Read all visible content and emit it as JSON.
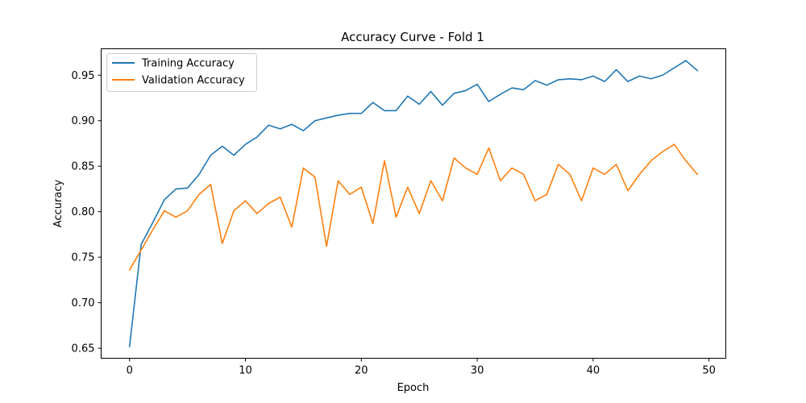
{
  "chart_data": {
    "type": "line",
    "title": "Accuracy Curve - Fold 1",
    "xlabel": "Epoch",
    "ylabel": "Accuracy",
    "xlim": [
      -2.45,
      51.45
    ],
    "ylim": [
      0.639,
      0.979
    ],
    "xticks": [
      0,
      10,
      20,
      30,
      40,
      50
    ],
    "yticks": [
      0.65,
      0.7,
      0.75,
      0.8,
      0.85,
      0.9,
      0.95
    ],
    "ytick_labels": [
      "0.65",
      "0.70",
      "0.75",
      "0.80",
      "0.85",
      "0.90",
      "0.95"
    ],
    "grid": false,
    "legend_position": "upper-left",
    "x": [
      0,
      1,
      2,
      3,
      4,
      5,
      6,
      7,
      8,
      9,
      10,
      11,
      12,
      13,
      14,
      15,
      16,
      17,
      18,
      19,
      20,
      21,
      22,
      23,
      24,
      25,
      26,
      27,
      28,
      29,
      30,
      31,
      32,
      33,
      34,
      35,
      36,
      37,
      38,
      39,
      40,
      41,
      42,
      43,
      44,
      45,
      46,
      47,
      48,
      49
    ],
    "series": [
      {
        "name": "Training Accuracy",
        "color": "#1f77b4",
        "values": [
          0.652,
          0.764,
          0.788,
          0.813,
          0.825,
          0.826,
          0.841,
          0.862,
          0.872,
          0.862,
          0.874,
          0.882,
          0.895,
          0.891,
          0.896,
          0.889,
          0.9,
          0.903,
          0.906,
          0.908,
          0.908,
          0.92,
          0.911,
          0.911,
          0.927,
          0.918,
          0.932,
          0.917,
          0.93,
          0.933,
          0.94,
          0.921,
          0.929,
          0.936,
          0.934,
          0.944,
          0.939,
          0.945,
          0.946,
          0.945,
          0.949,
          0.943,
          0.956,
          0.943,
          0.949,
          0.946,
          0.95,
          0.958,
          0.966,
          0.955
        ]
      },
      {
        "name": "Validation Accuracy",
        "color": "#ff7f0e",
        "values": [
          0.736,
          0.758,
          0.78,
          0.801,
          0.794,
          0.801,
          0.819,
          0.83,
          0.765,
          0.801,
          0.812,
          0.798,
          0.809,
          0.816,
          0.783,
          0.848,
          0.838,
          0.762,
          0.834,
          0.819,
          0.827,
          0.787,
          0.856,
          0.794,
          0.827,
          0.798,
          0.834,
          0.812,
          0.859,
          0.848,
          0.841,
          0.87,
          0.834,
          0.848,
          0.841,
          0.812,
          0.819,
          0.852,
          0.841,
          0.812,
          0.848,
          0.841,
          0.852,
          0.823,
          0.841,
          0.856,
          0.866,
          0.874,
          0.856,
          0.841
        ]
      }
    ]
  }
}
